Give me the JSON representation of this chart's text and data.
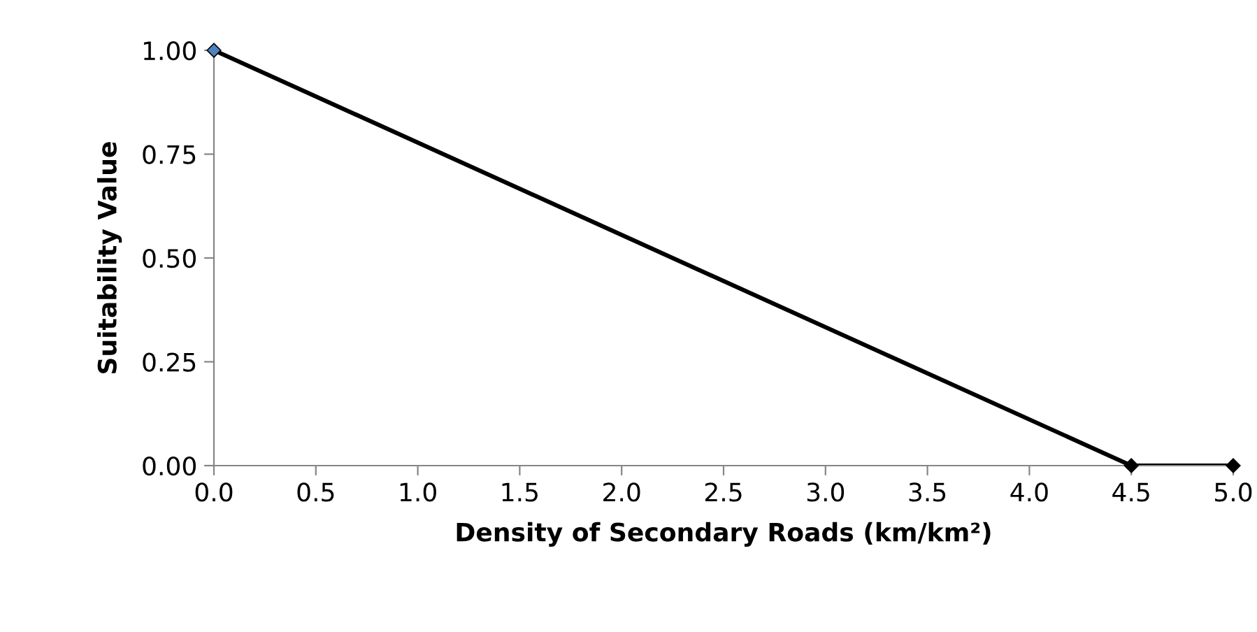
{
  "chart_data": {
    "type": "line",
    "xlabel": "Density of Secondary Roads (km/km²)",
    "ylabel": "Suitability Value",
    "x": [
      0,
      4.5,
      5.0
    ],
    "series": [
      {
        "color": "#000000",
        "colors": [
          "#4f81bd",
          "#000000",
          "#000000"
        ],
        "values": [
          1.0,
          0.0,
          0.0
        ]
      }
    ],
    "xlim": [
      0,
      5.0
    ],
    "xticks": [
      {
        "value": 0,
        "label": "0.0"
      },
      0.5,
      {
        "value": 1,
        "label": "1.0"
      },
      1.5,
      {
        "value": 2,
        "label": "2.0"
      },
      2.5,
      {
        "value": 3,
        "label": "3.0"
      },
      3.5,
      {
        "value": 4,
        "label": "4.0"
      },
      4.5,
      {
        "value": 5,
        "label": "5.0"
      }
    ],
    "ylim": [
      0,
      1.0
    ],
    "yticks": [
      {
        "value": 0,
        "label": "0.00"
      },
      0.25,
      {
        "value": 0.5,
        "label": "0.50"
      },
      0.75,
      {
        "value": 1,
        "label": "1.00"
      }
    ],
    "grid": false,
    "legend": false,
    "marker": "diamond",
    "line_style": "solid"
  }
}
